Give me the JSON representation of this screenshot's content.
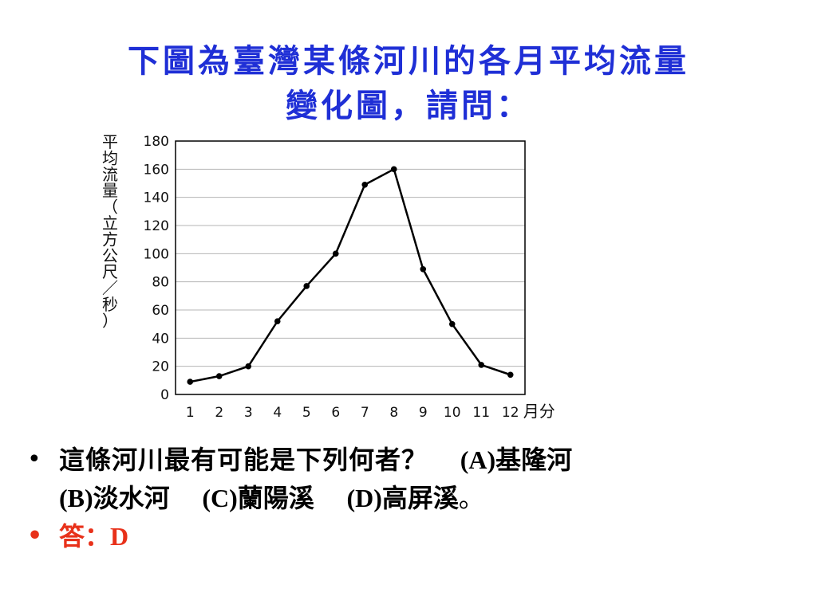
{
  "slide": {
    "title_line1": "下圖為臺灣某條河川的各月平均流量",
    "title_line2": "變化圖，請問：",
    "title_color": "#1f2fd6"
  },
  "question": {
    "bullet": "•",
    "stem": "這條河川最有可能是下列何者？",
    "options": [
      {
        "letter": "(A)",
        "text": "基隆河"
      },
      {
        "letter": "(B)",
        "text": "淡水河"
      },
      {
        "letter": "(C)",
        "text": "蘭陽溪"
      },
      {
        "letter": "(D)",
        "text": "高屏溪"
      }
    ],
    "end": "。"
  },
  "answer": {
    "bullet": "•",
    "label": "答：",
    "value": "D",
    "color": "#e8311a"
  },
  "chart_data": {
    "type": "line",
    "ylabel": "平均流量（立方公尺／秒）",
    "xlabel": "月分",
    "x": [
      1,
      2,
      3,
      4,
      5,
      6,
      7,
      8,
      9,
      10,
      11,
      12
    ],
    "series": [
      {
        "values": [
          9,
          13,
          20,
          52,
          77,
          100,
          149,
          160,
          89,
          50,
          21,
          14
        ]
      }
    ],
    "ylim": [
      0,
      180
    ],
    "yticks": [
      0,
      20,
      40,
      60,
      80,
      100,
      120,
      140,
      160,
      180
    ],
    "grid": true,
    "line_color": "#000000"
  }
}
